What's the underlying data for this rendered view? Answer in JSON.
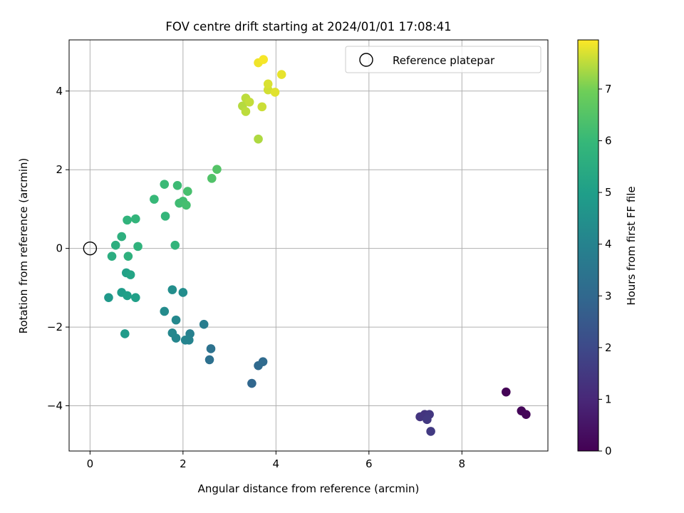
{
  "chart_data": {
    "type": "scatter",
    "title": "FOV centre drift starting at 2024/01/01 17:08:41",
    "xlabel": "Angular distance from reference (arcmin)",
    "ylabel": "Rotation from reference (arcmin)",
    "xlim": [
      -0.45,
      9.85
    ],
    "ylim": [
      -5.15,
      5.3
    ],
    "xticks": [
      0,
      2,
      4,
      6,
      8
    ],
    "yticks": [
      -4,
      -2,
      0,
      2,
      4
    ],
    "grid": true,
    "legend": {
      "placement": "top-right",
      "entries": [
        "Reference platepar"
      ]
    },
    "reference": {
      "x": 0,
      "y": 0
    },
    "colorbar": {
      "label": "Hours from first FF file",
      "range": [
        0,
        7.95
      ],
      "ticks": [
        0,
        1,
        2,
        3,
        4,
        5,
        6,
        7
      ],
      "colormap": "viridis"
    },
    "points": [
      {
        "x": 8.95,
        "y": -3.65,
        "t": 0.05
      },
      {
        "x": 9.28,
        "y": -4.13,
        "t": 0.1
      },
      {
        "x": 9.38,
        "y": -4.22,
        "t": 0.15
      },
      {
        "x": 7.2,
        "y": -4.22,
        "t": 1.35
      },
      {
        "x": 7.1,
        "y": -4.28,
        "t": 1.4
      },
      {
        "x": 7.3,
        "y": -4.22,
        "t": 1.45
      },
      {
        "x": 7.25,
        "y": -4.35,
        "t": 1.5
      },
      {
        "x": 7.33,
        "y": -4.65,
        "t": 1.55
      },
      {
        "x": 3.48,
        "y": -3.43,
        "t": 2.95
      },
      {
        "x": 3.62,
        "y": -2.98,
        "t": 3.05
      },
      {
        "x": 3.72,
        "y": -2.88,
        "t": 3.1
      },
      {
        "x": 2.57,
        "y": -2.83,
        "t": 3.3
      },
      {
        "x": 2.6,
        "y": -2.55,
        "t": 3.35
      },
      {
        "x": 2.45,
        "y": -1.93,
        "t": 3.8
      },
      {
        "x": 2.15,
        "y": -2.17,
        "t": 3.9
      },
      {
        "x": 2.13,
        "y": -2.33,
        "t": 4.0
      },
      {
        "x": 2.05,
        "y": -2.33,
        "t": 4.05
      },
      {
        "x": 1.85,
        "y": -2.28,
        "t": 4.1
      },
      {
        "x": 1.77,
        "y": -2.15,
        "t": 4.15
      },
      {
        "x": 1.85,
        "y": -1.82,
        "t": 4.2
      },
      {
        "x": 1.6,
        "y": -1.6,
        "t": 4.3
      },
      {
        "x": 2.0,
        "y": -1.12,
        "t": 4.35
      },
      {
        "x": 1.77,
        "y": -1.05,
        "t": 4.4
      },
      {
        "x": 0.4,
        "y": -1.25,
        "t": 4.8
      },
      {
        "x": 0.75,
        "y": -2.17,
        "t": 4.85
      },
      {
        "x": 0.68,
        "y": -1.12,
        "t": 4.9
      },
      {
        "x": 0.8,
        "y": -1.2,
        "t": 5.0
      },
      {
        "x": 0.98,
        "y": -1.25,
        "t": 5.05
      },
      {
        "x": 0.78,
        "y": -0.62,
        "t": 5.1
      },
      {
        "x": 0.87,
        "y": -0.67,
        "t": 5.2
      },
      {
        "x": 0.47,
        "y": -0.2,
        "t": 5.55
      },
      {
        "x": 0.55,
        "y": 0.08,
        "t": 5.6
      },
      {
        "x": 0.68,
        "y": 0.3,
        "t": 5.65
      },
      {
        "x": 0.82,
        "y": -0.2,
        "t": 5.7
      },
      {
        "x": 1.03,
        "y": 0.05,
        "t": 5.75
      },
      {
        "x": 0.8,
        "y": 0.72,
        "t": 5.8
      },
      {
        "x": 0.98,
        "y": 0.75,
        "t": 5.85
      },
      {
        "x": 1.83,
        "y": 0.08,
        "t": 5.85
      },
      {
        "x": 1.62,
        "y": 0.82,
        "t": 5.9
      },
      {
        "x": 1.38,
        "y": 1.25,
        "t": 6.0
      },
      {
        "x": 1.6,
        "y": 1.63,
        "t": 6.05
      },
      {
        "x": 1.88,
        "y": 1.6,
        "t": 6.1
      },
      {
        "x": 1.92,
        "y": 1.15,
        "t": 6.15
      },
      {
        "x": 2.0,
        "y": 1.2,
        "t": 6.2
      },
      {
        "x": 2.07,
        "y": 1.1,
        "t": 6.25
      },
      {
        "x": 2.1,
        "y": 1.45,
        "t": 6.3
      },
      {
        "x": 2.62,
        "y": 1.78,
        "t": 6.45
      },
      {
        "x": 2.73,
        "y": 2.01,
        "t": 6.5
      },
      {
        "x": 3.62,
        "y": 2.78,
        "t": 7.4
      },
      {
        "x": 3.28,
        "y": 3.62,
        "t": 7.45
      },
      {
        "x": 3.35,
        "y": 3.48,
        "t": 7.5
      },
      {
        "x": 3.35,
        "y": 3.82,
        "t": 7.5
      },
      {
        "x": 3.43,
        "y": 3.72,
        "t": 7.55
      },
      {
        "x": 3.7,
        "y": 3.6,
        "t": 7.6
      },
      {
        "x": 3.83,
        "y": 4.03,
        "t": 7.65
      },
      {
        "x": 3.83,
        "y": 4.18,
        "t": 7.7
      },
      {
        "x": 3.98,
        "y": 3.97,
        "t": 7.75
      },
      {
        "x": 4.12,
        "y": 4.42,
        "t": 7.8
      },
      {
        "x": 3.62,
        "y": 4.72,
        "t": 7.85
      },
      {
        "x": 3.73,
        "y": 4.8,
        "t": 7.9
      }
    ]
  }
}
